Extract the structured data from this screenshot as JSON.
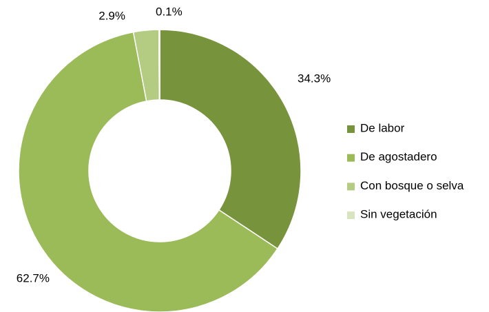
{
  "chart_data": {
    "type": "donut",
    "categories": [
      "De labor",
      "De agostadero",
      "Con bosque o selva",
      "Sin vegetación"
    ],
    "values": [
      34.3,
      62.7,
      2.9,
      0.1
    ],
    "value_labels": [
      "34.3%",
      "62.7%",
      "2.9%",
      "0.1%"
    ],
    "colors": [
      "#77933c",
      "#9bbb59",
      "#b3cc82",
      "#d7e4bd"
    ],
    "legend": "right"
  }
}
